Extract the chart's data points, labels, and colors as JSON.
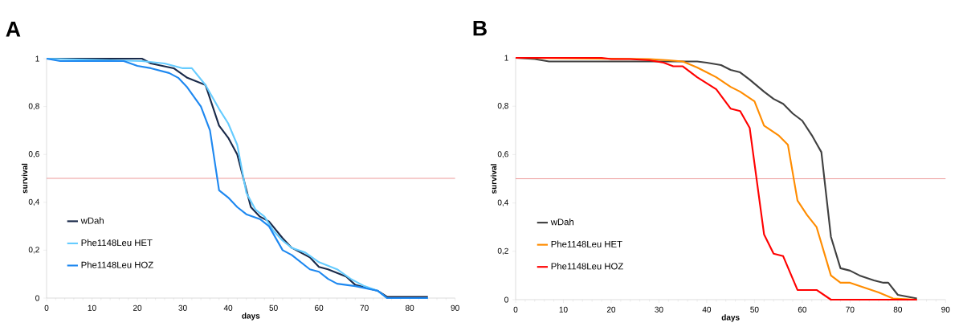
{
  "chart_data": [
    {
      "type": "line",
      "title": "A",
      "xlabel": "days",
      "ylabel": "survival",
      "xlim": [
        0,
        90
      ],
      "ylim": [
        0,
        1
      ],
      "xticks": [
        0,
        10,
        20,
        30,
        40,
        50,
        60,
        70,
        80,
        90
      ],
      "yticks": [
        {
          "value": 0,
          "label": "0"
        },
        {
          "value": 0.2,
          "label": "0,2"
        },
        {
          "value": 0.4,
          "label": "0,4"
        },
        {
          "value": 0.6,
          "label": "0,6"
        },
        {
          "value": 0.8,
          "label": "0,8"
        },
        {
          "value": 1,
          "label": "1"
        }
      ],
      "legend": "bottom left",
      "ref_lines": [
        {
          "axis": "y",
          "value": 0.5,
          "color": "#e88080"
        }
      ],
      "series": [
        {
          "name": "wDah",
          "color": "#1a2a4a",
          "x": [
            0,
            21,
            23,
            28,
            31,
            35,
            38,
            40,
            42,
            45,
            47,
            49,
            52,
            54,
            56,
            58,
            60,
            62,
            66,
            68,
            73,
            75,
            84
          ],
          "values": [
            1,
            1,
            0.98,
            0.96,
            0.92,
            0.89,
            0.72,
            0.67,
            0.6,
            0.38,
            0.34,
            0.32,
            0.25,
            0.21,
            0.19,
            0.17,
            0.13,
            0.12,
            0.09,
            0.055,
            0.03,
            0.005,
            0.005
          ]
        },
        {
          "name": "Phe1148Leu HET",
          "color": "#66ccff",
          "x": [
            0,
            21,
            26,
            28,
            30,
            32,
            35,
            38,
            40,
            42,
            44,
            46,
            48,
            50,
            52,
            54,
            57,
            60,
            64,
            67,
            70,
            73,
            75,
            84
          ],
          "values": [
            1,
            0.99,
            0.98,
            0.97,
            0.96,
            0.96,
            0.89,
            0.79,
            0.73,
            0.64,
            0.44,
            0.37,
            0.34,
            0.28,
            0.24,
            0.21,
            0.19,
            0.15,
            0.12,
            0.08,
            0.05,
            0.03,
            0,
            0
          ]
        },
        {
          "name": "Phe1148Leu HOZ",
          "color": "#1e88f0",
          "x": [
            0,
            3,
            17,
            20,
            23,
            27,
            29,
            31,
            34,
            36,
            38,
            40,
            42,
            44,
            47,
            49,
            52,
            54,
            56,
            58,
            60,
            62,
            64,
            68,
            73,
            75,
            84
          ],
          "values": [
            1,
            0.99,
            0.99,
            0.97,
            0.96,
            0.94,
            0.92,
            0.88,
            0.8,
            0.7,
            0.45,
            0.42,
            0.38,
            0.35,
            0.33,
            0.3,
            0.2,
            0.18,
            0.15,
            0.12,
            0.11,
            0.08,
            0.06,
            0.05,
            0.03,
            0,
            0
          ]
        }
      ]
    },
    {
      "type": "line",
      "title": "B",
      "xlabel": "days",
      "ylabel": "survival",
      "xlim": [
        0,
        90
      ],
      "ylim": [
        0,
        1
      ],
      "xticks": [
        0,
        10,
        20,
        30,
        40,
        50,
        60,
        70,
        80,
        90
      ],
      "yticks": [
        {
          "value": 0,
          "label": "0"
        },
        {
          "value": 0.2,
          "label": "0,2"
        },
        {
          "value": 0.4,
          "label": "0,4"
        },
        {
          "value": 0.6,
          "label": "0,6"
        },
        {
          "value": 0.8,
          "label": "0,8"
        },
        {
          "value": 1,
          "label": "1"
        }
      ],
      "legend": "bottom left",
      "ref_lines": [
        {
          "axis": "y",
          "value": 0.5,
          "color": "#e88080"
        }
      ],
      "series": [
        {
          "name": "wDah",
          "color": "#404040",
          "x": [
            0,
            4,
            7,
            38,
            40,
            43,
            45,
            47,
            49,
            52,
            54,
            56,
            58,
            60,
            62,
            64,
            66,
            68,
            70,
            72,
            75,
            77,
            78,
            80,
            84
          ],
          "values": [
            1,
            0.995,
            0.985,
            0.985,
            0.98,
            0.97,
            0.95,
            0.94,
            0.91,
            0.86,
            0.83,
            0.81,
            0.77,
            0.74,
            0.68,
            0.61,
            0.26,
            0.13,
            0.12,
            0.1,
            0.08,
            0.07,
            0.07,
            0.02,
            0.005
          ]
        },
        {
          "name": "Phe1148Leu HET",
          "color": "#ff8c00",
          "x": [
            0,
            28,
            32,
            35,
            38,
            40,
            42,
            45,
            47,
            50,
            52,
            55,
            57,
            59,
            61,
            63,
            66,
            68,
            70,
            73,
            76,
            79,
            84
          ],
          "values": [
            1,
            0.995,
            0.99,
            0.985,
            0.96,
            0.94,
            0.92,
            0.88,
            0.86,
            0.82,
            0.72,
            0.68,
            0.64,
            0.41,
            0.35,
            0.3,
            0.1,
            0.07,
            0.07,
            0.05,
            0.03,
            0.005,
            0
          ]
        },
        {
          "name": "Phe1148Leu HOZ",
          "color": "#ff0000",
          "x": [
            0,
            18,
            20,
            24,
            28,
            31,
            33,
            35,
            38,
            42,
            45,
            47,
            49,
            52,
            54,
            56,
            59,
            63,
            66,
            84
          ],
          "values": [
            1,
            1,
            0.995,
            0.995,
            0.99,
            0.98,
            0.965,
            0.965,
            0.92,
            0.87,
            0.79,
            0.78,
            0.71,
            0.27,
            0.19,
            0.18,
            0.04,
            0.04,
            0,
            0
          ]
        }
      ]
    }
  ]
}
